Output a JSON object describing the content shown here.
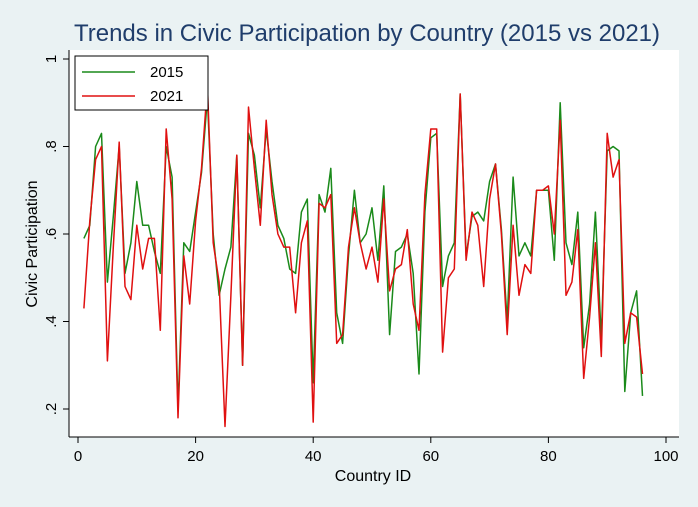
{
  "chart_data": {
    "type": "line",
    "title": "Trends in Civic Participation by Country (2015 vs 2021)",
    "xlabel": "Country ID",
    "ylabel": "Civic Participation",
    "xlim": [
      0,
      100
    ],
    "ylim": [
      0.2,
      1.0
    ],
    "xticks": [
      0,
      20,
      40,
      60,
      80,
      100
    ],
    "xtick_labels": [
      "0",
      "20",
      "40",
      "60",
      "80",
      "100"
    ],
    "yticks": [
      0.2,
      0.4,
      0.6,
      0.8,
      1.0
    ],
    "ytick_labels": [
      ".2",
      ".4",
      ".6",
      ".8",
      "1"
    ],
    "grid": false,
    "legend_position": "top-left",
    "series": [
      {
        "name": "2015",
        "color": "#1a8a1a",
        "x": [
          1,
          2,
          3,
          4,
          5,
          6,
          7,
          8,
          9,
          10,
          11,
          12,
          13,
          14,
          15,
          16,
          17,
          18,
          19,
          20,
          21,
          22,
          23,
          24,
          25,
          26,
          27,
          28,
          29,
          30,
          31,
          32,
          33,
          34,
          35,
          36,
          37,
          38,
          39,
          40,
          41,
          42,
          43,
          44,
          45,
          46,
          47,
          48,
          49,
          50,
          51,
          52,
          53,
          54,
          55,
          56,
          57,
          58,
          59,
          60,
          61,
          62,
          63,
          64,
          65,
          66,
          67,
          68,
          69,
          70,
          71,
          72,
          73,
          74,
          75,
          76,
          77,
          78,
          79,
          80,
          81,
          82,
          83,
          84,
          85,
          86,
          87,
          88,
          89,
          90,
          91,
          92,
          93,
          94,
          95,
          96
        ],
        "y": [
          0.59,
          0.62,
          0.8,
          0.83,
          0.49,
          0.64,
          0.8,
          0.51,
          0.58,
          0.72,
          0.62,
          0.62,
          0.56,
          0.51,
          0.8,
          0.73,
          0.2,
          0.58,
          0.56,
          0.65,
          0.74,
          0.91,
          0.6,
          0.46,
          0.52,
          0.57,
          0.78,
          0.3,
          0.83,
          0.78,
          0.66,
          0.84,
          0.72,
          0.62,
          0.59,
          0.52,
          0.51,
          0.65,
          0.68,
          0.26,
          0.69,
          0.65,
          0.75,
          0.42,
          0.35,
          0.55,
          0.7,
          0.58,
          0.6,
          0.66,
          0.54,
          0.71,
          0.37,
          0.56,
          0.57,
          0.6,
          0.51,
          0.28,
          0.65,
          0.82,
          0.83,
          0.48,
          0.55,
          0.58,
          0.92,
          0.55,
          0.64,
          0.65,
          0.63,
          0.72,
          0.76,
          0.61,
          0.4,
          0.73,
          0.55,
          0.58,
          0.55,
          0.7,
          0.7,
          0.7,
          0.54,
          0.9,
          0.58,
          0.53,
          0.65,
          0.34,
          0.44,
          0.65,
          0.36,
          0.79,
          0.8,
          0.79,
          0.24,
          0.42,
          0.47,
          0.23
        ]
      },
      {
        "name": "2021",
        "color": "#e01010",
        "x": [
          1,
          2,
          3,
          4,
          5,
          6,
          7,
          8,
          9,
          10,
          11,
          12,
          13,
          14,
          15,
          16,
          17,
          18,
          19,
          20,
          21,
          22,
          23,
          24,
          25,
          26,
          27,
          28,
          29,
          30,
          31,
          32,
          33,
          34,
          35,
          36,
          37,
          38,
          39,
          40,
          41,
          42,
          43,
          44,
          45,
          46,
          47,
          48,
          49,
          50,
          51,
          52,
          53,
          54,
          55,
          56,
          57,
          58,
          59,
          60,
          61,
          62,
          63,
          64,
          65,
          66,
          67,
          68,
          69,
          70,
          71,
          72,
          73,
          74,
          75,
          76,
          77,
          78,
          79,
          80,
          81,
          82,
          83,
          84,
          85,
          86,
          87,
          88,
          89,
          90,
          91,
          92,
          93,
          94,
          95,
          96
        ],
        "y": [
          0.43,
          0.63,
          0.77,
          0.8,
          0.31,
          0.57,
          0.81,
          0.48,
          0.45,
          0.62,
          0.52,
          0.59,
          0.59,
          0.38,
          0.84,
          0.68,
          0.18,
          0.55,
          0.44,
          0.63,
          0.75,
          0.94,
          0.58,
          0.49,
          0.16,
          0.46,
          0.78,
          0.3,
          0.89,
          0.75,
          0.62,
          0.86,
          0.69,
          0.6,
          0.57,
          0.57,
          0.42,
          0.58,
          0.63,
          0.17,
          0.67,
          0.66,
          0.69,
          0.35,
          0.37,
          0.57,
          0.66,
          0.58,
          0.52,
          0.57,
          0.49,
          0.68,
          0.47,
          0.52,
          0.53,
          0.61,
          0.44,
          0.38,
          0.69,
          0.84,
          0.84,
          0.33,
          0.5,
          0.52,
          0.92,
          0.54,
          0.65,
          0.62,
          0.48,
          0.68,
          0.76,
          0.6,
          0.37,
          0.62,
          0.46,
          0.53,
          0.51,
          0.7,
          0.7,
          0.71,
          0.6,
          0.86,
          0.46,
          0.49,
          0.61,
          0.27,
          0.41,
          0.58,
          0.32,
          0.83,
          0.73,
          0.77,
          0.35,
          0.42,
          0.41,
          0.28
        ]
      }
    ]
  }
}
